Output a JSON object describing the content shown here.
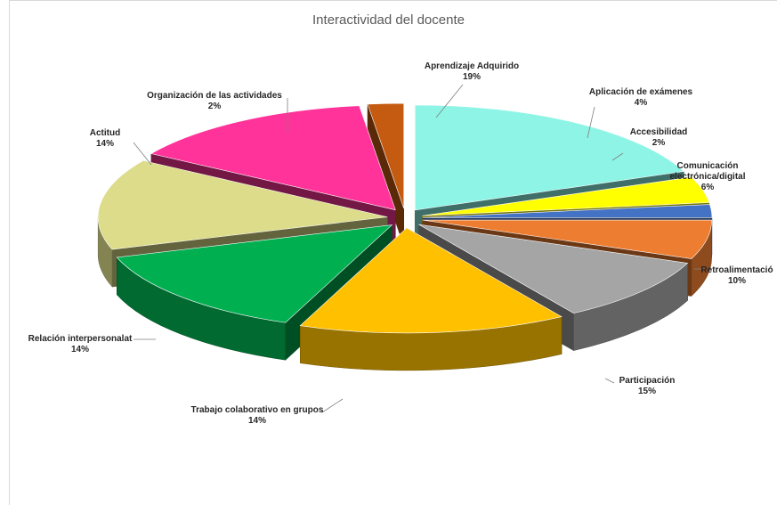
{
  "chart_data": {
    "type": "pie",
    "title": "Interactividad del docente",
    "slices": [
      {
        "label": "Aprendizaje Adquirido",
        "pct_label": "19%",
        "value": 19,
        "color": "#8ef5e6"
      },
      {
        "label": "Aplicación de exámenes",
        "pct_label": "4%",
        "value": 4,
        "color": "#ffff00"
      },
      {
        "label": "Accesibilidad",
        "pct_label": "2%",
        "value": 2,
        "color": "#4472c4"
      },
      {
        "label": "Comunicación electrónica/digital",
        "pct_label": "6%",
        "value": 6,
        "color": "#ed7d31"
      },
      {
        "label": "Retroalimentació",
        "pct_label": "10%",
        "value": 10,
        "color": "#a5a5a5"
      },
      {
        "label": "Participación",
        "pct_label": "15%",
        "value": 15,
        "color": "#ffc000"
      },
      {
        "label": "Trabajo colaborativo en grupos",
        "pct_label": "14%",
        "value": 14,
        "color": "#00b050"
      },
      {
        "label": "Relación interpersonalat",
        "pct_label": "14%",
        "value": 14,
        "color": "#dcdc8a"
      },
      {
        "label": "Actitud",
        "pct_label": "14%",
        "value": 14,
        "color": "#ff3399"
      },
      {
        "label": "Organización de las actividades",
        "pct_label": "2%",
        "value": 2,
        "color": "#c55a11"
      }
    ],
    "legend": "none",
    "style": "exploded 3D pie with data labels"
  }
}
